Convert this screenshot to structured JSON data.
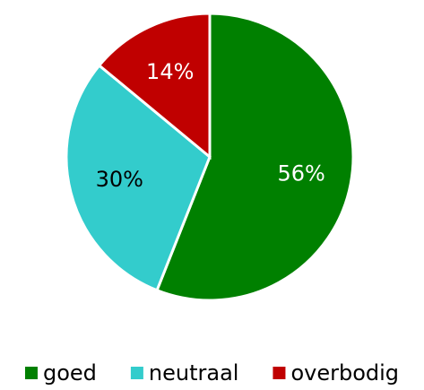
{
  "chart_data": {
    "type": "pie",
    "categories": [
      "goed",
      "neutraal",
      "overbodig"
    ],
    "values": [
      56,
      30,
      14
    ],
    "value_labels": [
      "56%",
      "30%",
      "14%"
    ],
    "colors": [
      "#008000",
      "#33cccc",
      "#c00000"
    ],
    "label_colors": [
      "#ffffff",
      "#000000",
      "#ffffff"
    ],
    "legend": "bottom"
  }
}
